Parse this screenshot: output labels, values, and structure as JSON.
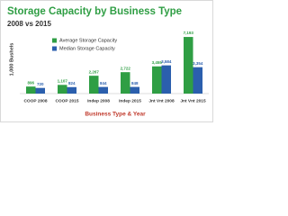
{
  "chart_data": {
    "type": "bar",
    "title": "Storage Capacity by Business Type",
    "subtitle": "2008 vs 2015",
    "y_label": "1,000 Bushels",
    "x_label": "Business Type & Year",
    "categories": [
      "COOP 2008",
      "COOP 2015",
      "Indep 2008",
      "Indep 2015",
      "Jnt Vnt 2008",
      "Jnt Vnt 2015"
    ],
    "series": [
      {
        "name": "Average Storage Capacity",
        "color": "#2f9e44",
        "values": [
          896,
          1107,
          2267,
          2722,
          3455,
          7193
        ],
        "value_labels": [
          "896",
          "1,107",
          "2,267",
          "2,722",
          "3,455",
          "7,193"
        ]
      },
      {
        "name": "Median Storage Capacity",
        "color": "#2b5fad",
        "values": [
          720,
          824,
          844,
          848,
          3584,
          3354
        ],
        "value_labels": [
          "720",
          "824",
          "844",
          "848",
          "3,584",
          "3,354"
        ]
      }
    ],
    "ylim": [
      0,
      8000
    ],
    "legend": "upper left"
  }
}
